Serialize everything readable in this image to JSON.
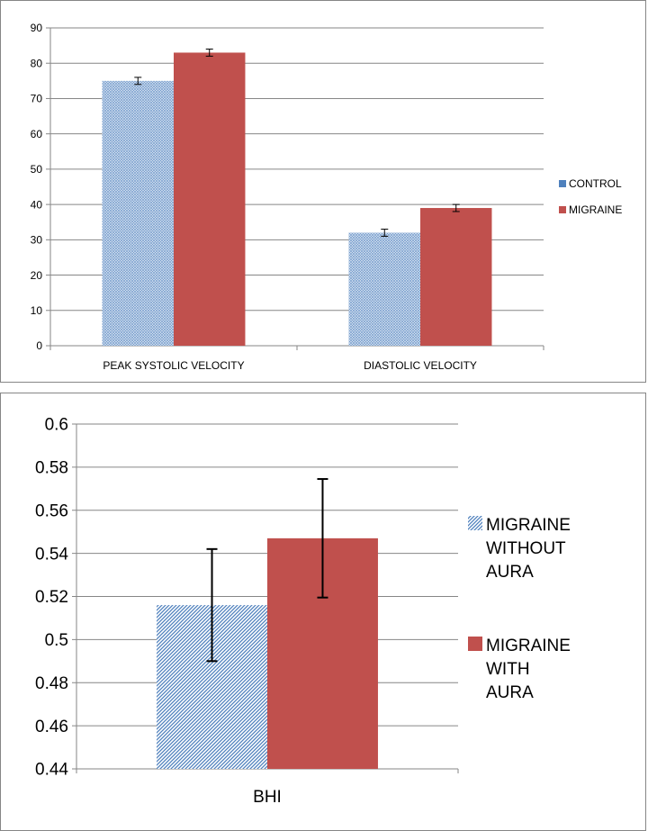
{
  "colors": {
    "control": "#4f81bd",
    "migraine": "#c0504d",
    "axis": "#868686",
    "grid": "#868686",
    "frame": "#868686"
  },
  "chart_data": [
    {
      "type": "bar",
      "categories": [
        "PEAK SYSTOLIC VELOCITY",
        "DIASTOLIC VELOCITY"
      ],
      "series": [
        {
          "name": "CONTROL",
          "values": [
            75,
            32
          ],
          "error": [
            1,
            1
          ],
          "color": "#4f81bd",
          "pattern": "fine-hatch"
        },
        {
          "name": "MIGRAINE",
          "values": [
            83,
            39
          ],
          "error": [
            1,
            1
          ],
          "color": "#c0504d",
          "pattern": "solid"
        }
      ],
      "ylim": [
        0,
        90
      ],
      "yticks": [
        "0",
        "10",
        "20",
        "30",
        "40",
        "50",
        "60",
        "70",
        "80",
        "90"
      ],
      "grid": true,
      "legend": "right"
    },
    {
      "type": "bar",
      "categories": [
        "BHI"
      ],
      "series": [
        {
          "name": "MIGRAINE WITHOUT AURA",
          "name_lines": [
            "MIGRAINE",
            "WITHOUT",
            "AURA"
          ],
          "values": [
            0.516
          ],
          "error": [
            0.026
          ],
          "color": "#4f81bd",
          "pattern": "diagonal-hatch"
        },
        {
          "name": "MIGRAINE WITH AURA",
          "name_lines": [
            "MIGRAINE",
            "WITH",
            "AURA"
          ],
          "values": [
            0.547
          ],
          "error": [
            0.0275
          ],
          "color": "#c0504d",
          "pattern": "solid"
        }
      ],
      "ylim": [
        0.44,
        0.6
      ],
      "yticks": [
        "0.44",
        "0.46",
        "0.48",
        "0.5",
        "0.52",
        "0.54",
        "0.56",
        "0.58",
        "0.6"
      ],
      "grid": true,
      "legend": "right"
    }
  ]
}
